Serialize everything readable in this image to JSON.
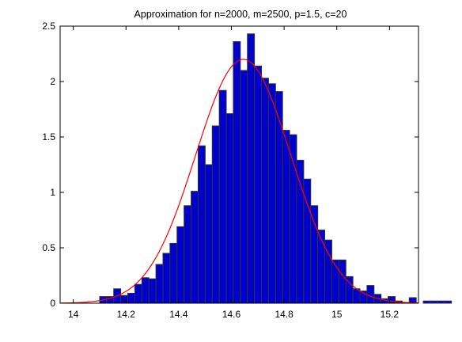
{
  "chart_data": {
    "type": "bar",
    "title": "Approximation for n=2000, m=2500, p=1.5, c=20",
    "xlabel": "",
    "ylabel": "",
    "xlim": [
      13.95,
      15.31
    ],
    "ylim": [
      0,
      2.5
    ],
    "x_ticks": [
      "14",
      "14.2",
      "14.4",
      "14.6",
      "14.8",
      "15",
      "15.2"
    ],
    "y_ticks": [
      "0",
      "0.5",
      "1",
      "1.5",
      "2",
      "2.5"
    ],
    "grid": false,
    "legend": "none",
    "bin_width": 0.0267,
    "bin_start": 14.1,
    "bin_values": [
      0.06,
      0.06,
      0.13,
      0.07,
      0.09,
      0.17,
      0.23,
      0.22,
      0.35,
      0.45,
      0.54,
      0.69,
      0.88,
      1.01,
      1.42,
      1.25,
      1.6,
      1.92,
      1.71,
      2.36,
      2.1,
      2.43,
      2.14,
      2.03,
      1.98,
      1.91,
      1.56,
      1.52,
      1.29,
      1.12,
      0.88,
      0.66,
      0.57,
      0.39,
      0.39,
      0.24,
      0.13,
      0.11,
      0.16,
      0.08,
      0.04,
      0.06,
      0.02,
      0.0,
      0.05,
      0.0,
      0.02,
      0.02,
      0.02,
      0.02
    ],
    "curve": {
      "type": "normal-density",
      "mean": 14.645,
      "sd": 0.181,
      "peak": 2.2
    },
    "colors": {
      "bar_fill": "#0000cc",
      "bar_edge": "#333333",
      "curve": "#ff0000",
      "axes": "#000000",
      "background": "#ffffff"
    }
  }
}
